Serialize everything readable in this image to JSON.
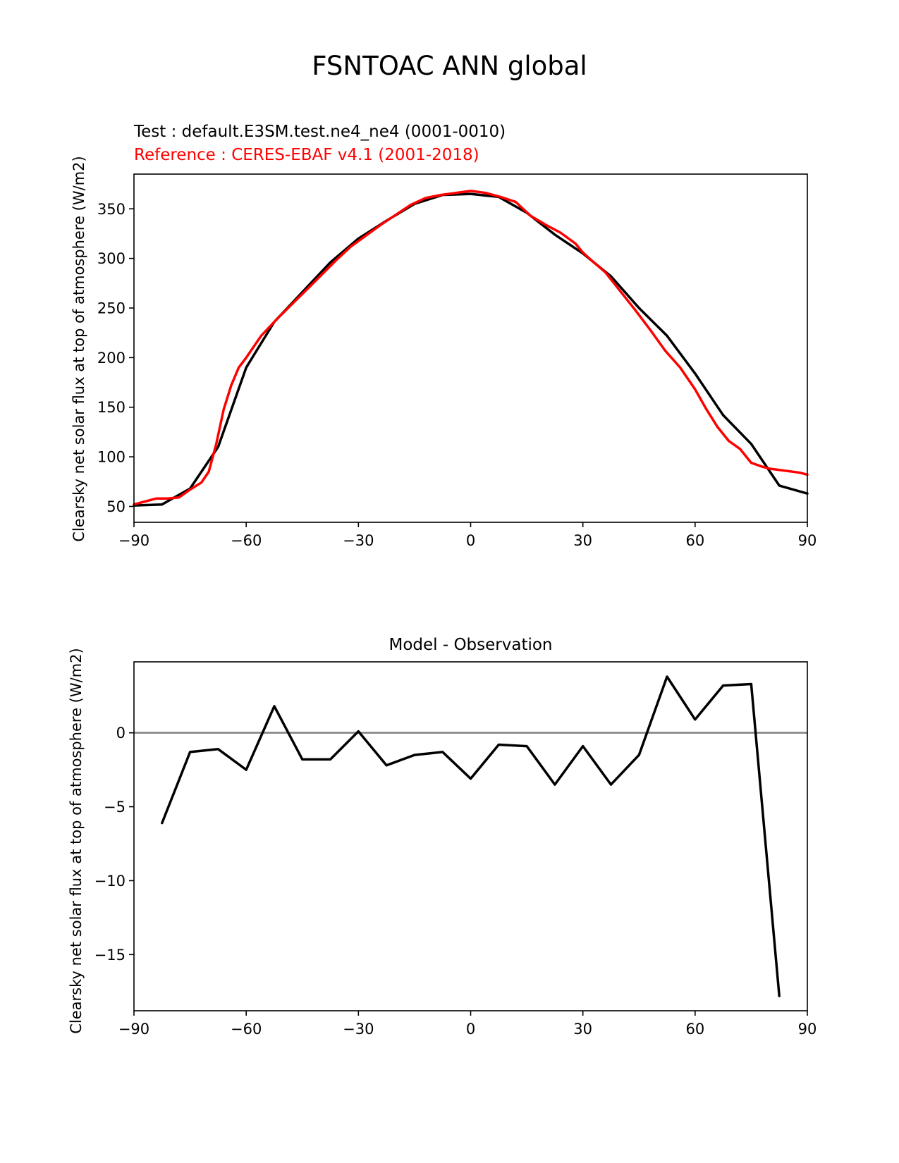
{
  "figure": {
    "title": "FSNTOAC ANN global",
    "test_label": "Test : default.E3SM.test.ne4_ne4 (0001-0010)",
    "reference_label": "Reference : CERES-EBAF v4.1 (2001-2018)",
    "diff_title": "Model - Observation",
    "ylabel_top": "Clearsky net solar flux at top of atmosphere (W/m2)",
    "ylabel_bottom": "Clearsky net solar flux at top of atmosphere (W/m2)"
  },
  "chart_data": [
    {
      "type": "line",
      "xlim": [
        -90,
        90
      ],
      "ylim": [
        34,
        385
      ],
      "x_ticks": [
        -90,
        -60,
        -30,
        0,
        30,
        60,
        90
      ],
      "x_tick_labels": [
        "−90",
        "−60",
        "−30",
        "0",
        "30",
        "60",
        "90"
      ],
      "y_ticks": [
        50,
        100,
        150,
        200,
        250,
        300,
        350
      ],
      "y_tick_labels": [
        "50",
        "100",
        "150",
        "200",
        "250",
        "300",
        "350"
      ],
      "series": [
        {
          "color": "#000000",
          "x": [
            -90,
            -82.5,
            -75,
            -67.5,
            -60,
            -52.5,
            -45,
            -37.5,
            -30,
            -22.5,
            -15,
            -7.5,
            0,
            7.5,
            15,
            22.5,
            30,
            37.5,
            45,
            52.5,
            60,
            67.5,
            75,
            82.5,
            90
          ],
          "y": [
            51,
            52,
            68,
            110,
            190,
            236,
            266,
            296,
            320,
            338,
            355,
            364,
            365,
            362,
            346,
            324,
            305,
            282,
            250,
            222,
            184,
            142,
            113,
            71,
            63
          ]
        },
        {
          "color": "#ff0000",
          "x": [
            -90,
            -87,
            -84,
            -81,
            -78,
            -75,
            -72,
            -70,
            -68,
            -66,
            -64,
            -62,
            -60,
            -56,
            -52,
            -48,
            -44,
            -40,
            -36,
            -32,
            -28,
            -24,
            -20,
            -16,
            -12,
            -8,
            -4,
            0,
            4,
            8,
            12,
            16,
            20,
            24,
            28,
            30,
            32,
            36,
            40,
            44,
            48,
            52,
            56,
            60,
            63,
            66,
            69,
            72,
            75,
            78,
            80,
            82,
            84,
            86,
            88,
            90
          ],
          "y": [
            52,
            55,
            58,
            58,
            59,
            67,
            74,
            85,
            113,
            148,
            172,
            190,
            200,
            222,
            238,
            253,
            268,
            283,
            298,
            312,
            323,
            334,
            344,
            354,
            361,
            364,
            366,
            368,
            366,
            362,
            357,
            343,
            334,
            326,
            315,
            306,
            299,
            286,
            267,
            248,
            228,
            207,
            190,
            168,
            148,
            130,
            116,
            108,
            94,
            90,
            88,
            87,
            86,
            85,
            84,
            82
          ]
        }
      ]
    },
    {
      "type": "line",
      "xlim": [
        -90,
        90
      ],
      "ylim": [
        -18.8,
        4.8
      ],
      "x_ticks": [
        -90,
        -60,
        -30,
        0,
        30,
        60,
        90
      ],
      "x_tick_labels": [
        "−90",
        "−60",
        "−30",
        "0",
        "30",
        "60",
        "90"
      ],
      "y_ticks": [
        -15,
        -10,
        -5,
        0
      ],
      "y_tick_labels": [
        "−15",
        "−10",
        "−5",
        "0"
      ],
      "zero_line": {
        "y": 0,
        "color": "#808080"
      },
      "series": [
        {
          "color": "#000000",
          "x": [
            -82.5,
            -75,
            -67.5,
            -60,
            -52.5,
            -45,
            -37.5,
            -30,
            -22.5,
            -15,
            -7.5,
            0,
            7.5,
            15,
            22.5,
            30,
            37.5,
            45,
            52.5,
            60,
            67.5,
            75,
            82.5
          ],
          "y": [
            -6.1,
            -1.3,
            -1.1,
            -2.5,
            1.8,
            -1.8,
            -1.8,
            0.1,
            -2.2,
            -1.5,
            -1.3,
            -3.1,
            -0.8,
            -0.9,
            -3.5,
            -0.9,
            -3.5,
            -1.5,
            3.8,
            0.9,
            3.2,
            3.3,
            -17.8
          ]
        }
      ]
    }
  ]
}
